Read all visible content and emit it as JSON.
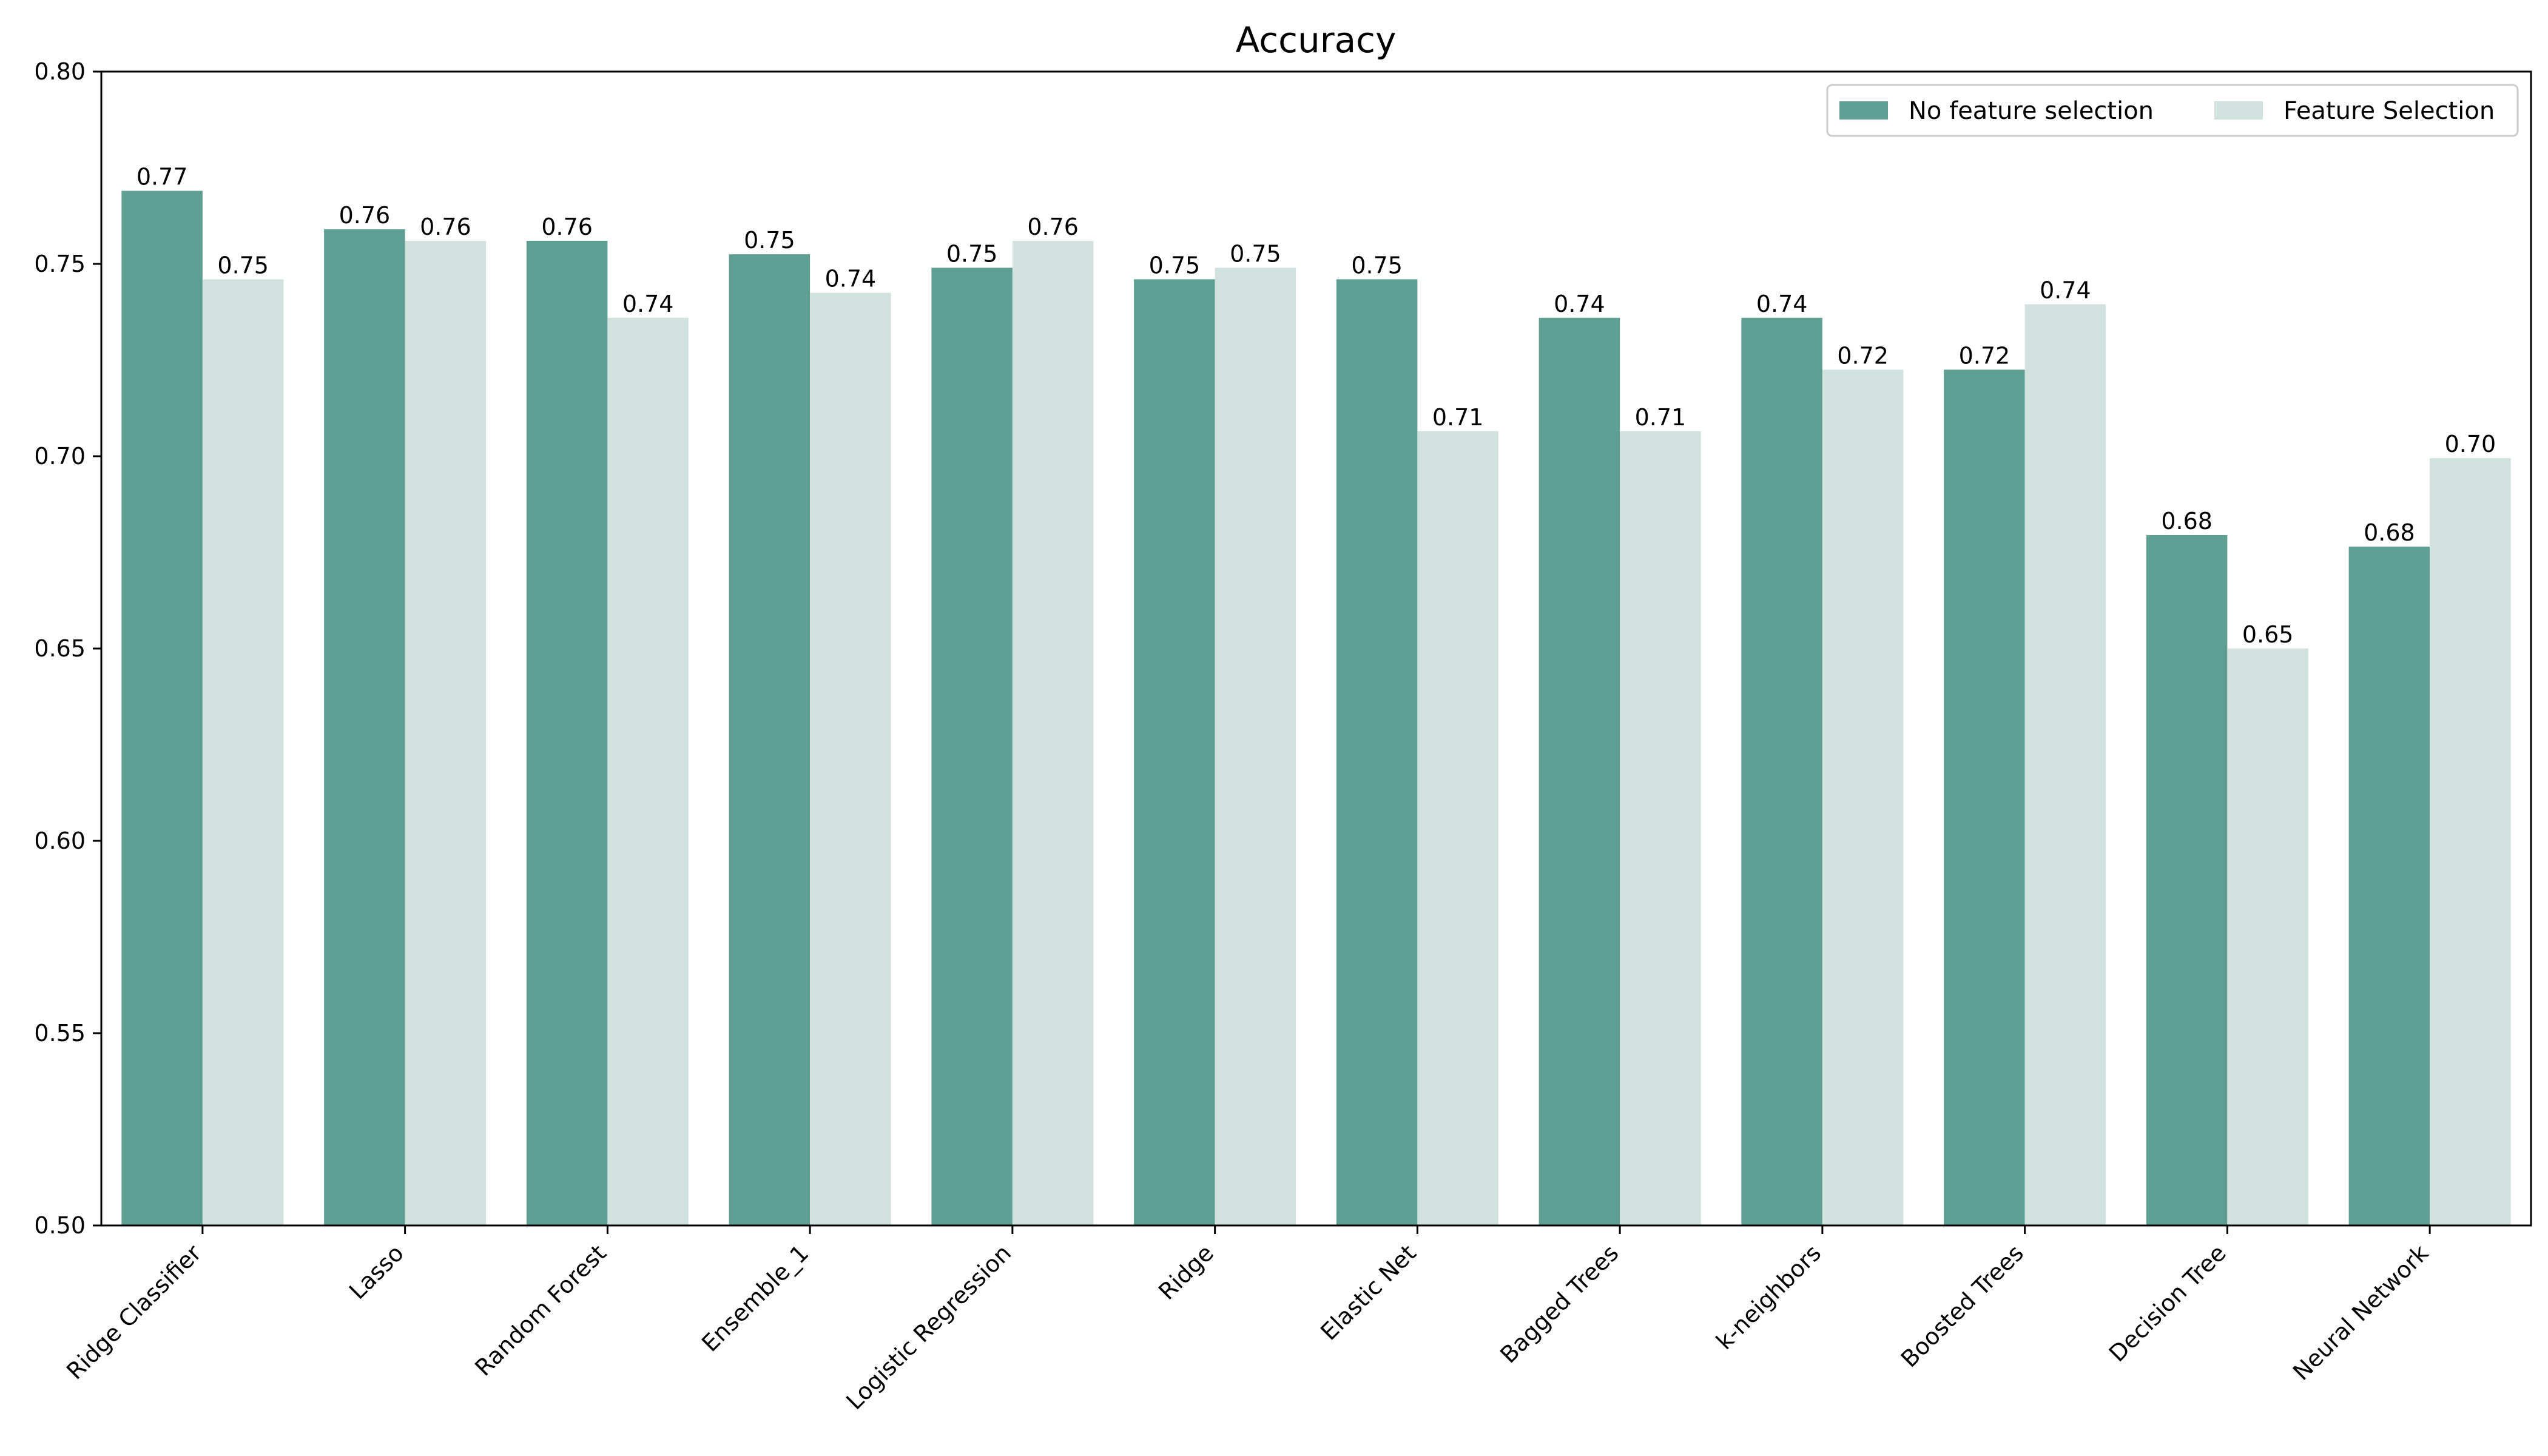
{
  "chart_data": {
    "type": "bar",
    "title": "Accuracy",
    "xlabel": "",
    "ylabel": "",
    "ylim": [
      0.5,
      0.8
    ],
    "yticks": [
      "0.50",
      "0.55",
      "0.60",
      "0.65",
      "0.70",
      "0.75",
      "0.80"
    ],
    "categories": [
      "Ridge Classifier",
      "Lasso",
      "Random Forest",
      "Ensemble_1",
      "Logistic Regression",
      "Ridge",
      "Elastic Net",
      "Bagged Trees",
      "k-neighbors",
      "Boosted Trees",
      "Decision Tree",
      "Neural Network"
    ],
    "series": [
      {
        "name": "No feature selection",
        "color": "#5f9f93",
        "values": [
          0.769,
          0.759,
          0.756,
          0.7525,
          0.749,
          0.746,
          0.746,
          0.736,
          0.736,
          0.7225,
          0.6795,
          0.6765
        ],
        "labels": [
          "0.77",
          "0.76",
          "0.76",
          "0.75",
          "0.75",
          "0.75",
          "0.75",
          "0.74",
          "0.74",
          "0.72",
          "0.68",
          "0.68"
        ]
      },
      {
        "name": "Feature Selection",
        "color": "#d1e2de",
        "values": [
          0.746,
          0.756,
          0.736,
          0.7425,
          0.756,
          0.749,
          0.7065,
          0.7065,
          0.7225,
          0.7395,
          0.65,
          0.6995
        ],
        "labels": [
          "0.75",
          "0.76",
          "0.74",
          "0.74",
          "0.76",
          "0.75",
          "0.71",
          "0.71",
          "0.72",
          "0.74",
          "0.65",
          "0.70"
        ]
      }
    ],
    "legend": {
      "position": "top-right"
    },
    "grid": false
  }
}
